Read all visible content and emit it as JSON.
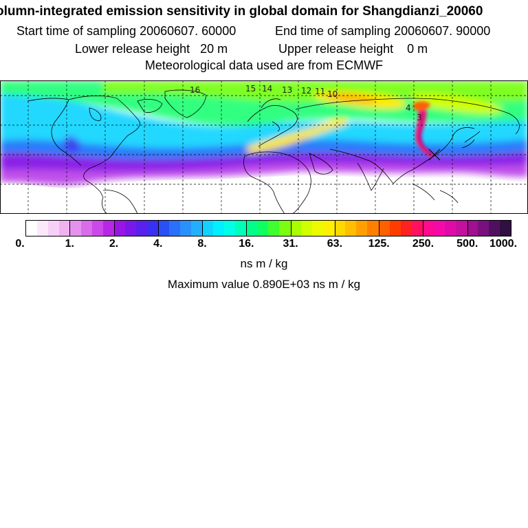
{
  "title": "olumn-integrated emission sensitivity in global domain for Shangdianzi_20060",
  "start_sampling": "Start time of sampling 20060607. 60000",
  "end_sampling": "End time of sampling 20060607. 90000",
  "lower_release": "Lower release height   20 m",
  "upper_release": "Upper release height    0 m",
  "met_data": "Meteorological data used are from ECMWF",
  "contour_labels": [
    "16",
    "15",
    "14",
    "13",
    "12",
    "11",
    "10",
    "4",
    "3"
  ],
  "colorbar": {
    "tick_labels": [
      "0.",
      "1.",
      "2.",
      "4.",
      "8.",
      "16.",
      "31.",
      "63.",
      "125.",
      "250.",
      "500.",
      "1000."
    ],
    "colors": [
      "#ffffff",
      "#fbe8fb",
      "#f6d0f6",
      "#efb3f0",
      "#e592ee",
      "#d86ce9",
      "#cc48e8",
      "#b826e8",
      "#9a14e6",
      "#7a18ea",
      "#5a20ee",
      "#3a30f2",
      "#2a4ff6",
      "#2a70fa",
      "#2a90fc",
      "#22b0fe",
      "#10d4ff",
      "#00f0ff",
      "#00ffe6",
      "#00ffb8",
      "#00ff8a",
      "#10ff60",
      "#40ff30",
      "#7aff10",
      "#a8ff00",
      "#cfff00",
      "#eefa00",
      "#fff000",
      "#ffd800",
      "#ffbe00",
      "#ffa000",
      "#ff8000",
      "#ff6000",
      "#ff3c00",
      "#ff2020",
      "#ff1060",
      "#ff0a90",
      "#f50aa8",
      "#e00aa8",
      "#c4109e",
      "#a01090",
      "#7a1080",
      "#501060",
      "#301040"
    ],
    "unit": "ns m / kg"
  },
  "max_value": "Maximum value  0.890E+03 ns m / kg",
  "colors": {
    "land_outline": "#000000",
    "grid": "#000000",
    "background": "#ffffff"
  }
}
